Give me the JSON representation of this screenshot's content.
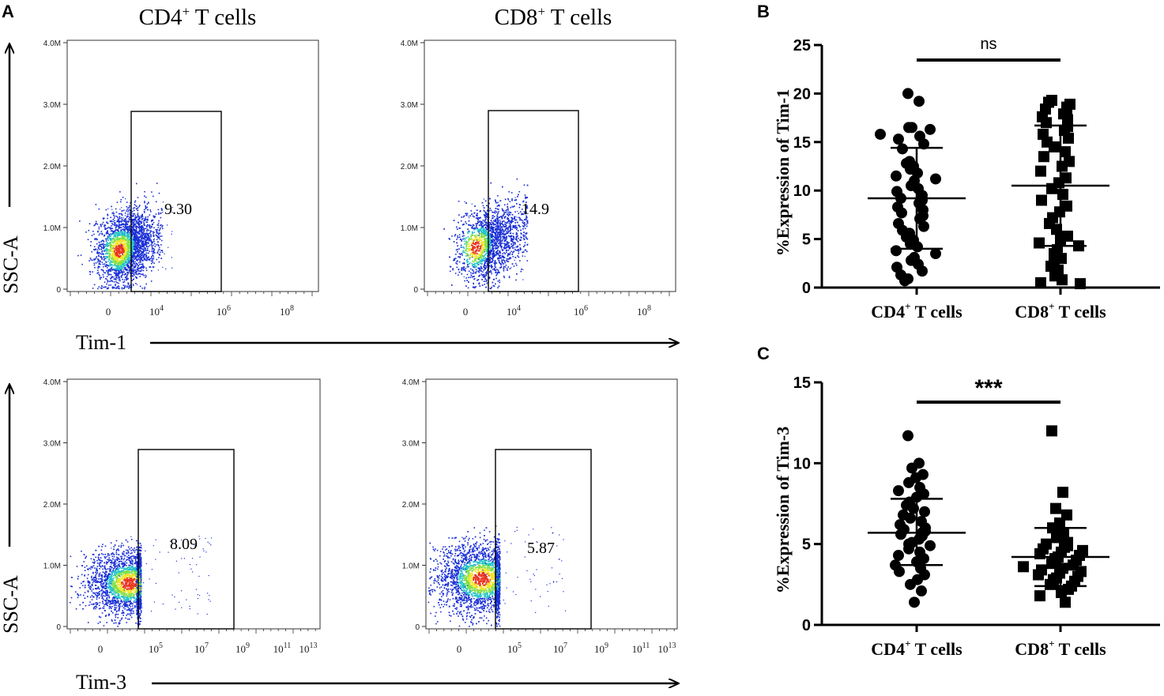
{
  "panel_labels": {
    "a": "A",
    "b": "B",
    "c": "C"
  },
  "column_titles": {
    "cd4": {
      "main": "CD4",
      "sup": "+",
      "rest": " T cells"
    },
    "cd8": {
      "main": "CD8",
      "sup": "+",
      "rest": " T cells"
    }
  },
  "y_axis_label": "SSC-A",
  "row_axis_labels": {
    "tim1": "Tim-1",
    "tim3": "Tim-3"
  },
  "flow_y_ticks": [
    "4.0M",
    "3.0M",
    "2.0M",
    "1.0M",
    "0"
  ],
  "flow_x_ticks_tim1": [
    {
      "base": "0",
      "exp": ""
    },
    {
      "base": "10",
      "exp": "4"
    },
    {
      "base": "10",
      "exp": "6"
    },
    {
      "base": "10",
      "exp": "8"
    }
  ],
  "flow_x_ticks_tim3": [
    {
      "base": "0",
      "exp": ""
    },
    {
      "base": "10",
      "exp": "5"
    },
    {
      "base": "10",
      "exp": "7"
    },
    {
      "base": "10",
      "exp": "9"
    },
    {
      "base": "10",
      "exp": "11"
    },
    {
      "base": "10",
      "exp": "13"
    }
  ],
  "gate_values": {
    "cd4_tim1": "9.30",
    "cd8_tim1": "14.9",
    "cd4_tim3": "8.09",
    "cd8_tim3": "5.87"
  },
  "colors": {
    "density_low": "#1a2fd6",
    "density_mid": "#22c3c9",
    "density_midhigh": "#7fe04a",
    "density_high": "#f2e32b",
    "density_peak": "#e8331f",
    "ink": "#000000"
  },
  "chart_data": [
    {
      "type": "scatter",
      "panel": "B",
      "ylabel": "%Expression of Tim-1",
      "ylim": [
        0,
        25
      ],
      "yticks": [
        "0",
        "5",
        "10",
        "15",
        "20",
        "25"
      ],
      "categories": [
        {
          "main": "CD4",
          "sup": "+",
          "rest": " T cells"
        },
        {
          "main": "CD8",
          "sup": "+",
          "rest": " T cells"
        }
      ],
      "significance": "ns",
      "series": [
        {
          "name": "CD4+ T cells",
          "marker": "circle",
          "mean": 9.2,
          "sd_low": 4.0,
          "sd_high": 14.4,
          "values": [
            20.0,
            19.2,
            16.5,
            16.5,
            16.3,
            15.8,
            15.6,
            15.3,
            14.8,
            14.3,
            13.0,
            12.8,
            12.5,
            12.2,
            11.8,
            11.5,
            11.2,
            11.0,
            10.5,
            10.2,
            9.9,
            9.5,
            9.2,
            9.0,
            8.7,
            8.3,
            8.0,
            7.7,
            7.4,
            7.1,
            6.6,
            6.3,
            5.9,
            5.6,
            5.2,
            4.9,
            4.5,
            4.2,
            3.8,
            3.5,
            3.1,
            2.8,
            2.4,
            2.1,
            1.7,
            1.3,
            0.9,
            0.7
          ]
        },
        {
          "name": "CD8+ T cells",
          "marker": "square",
          "mean": 10.5,
          "sd_low": 4.3,
          "sd_high": 16.7,
          "values": [
            19.3,
            19.1,
            18.9,
            18.6,
            18.4,
            18.2,
            17.9,
            17.6,
            17.3,
            17.0,
            16.6,
            16.2,
            15.8,
            15.4,
            15.0,
            14.5,
            14.0,
            13.5,
            13.0,
            12.5,
            12.0,
            11.3,
            10.8,
            10.2,
            9.6,
            9.0,
            8.4,
            7.8,
            7.2,
            6.6,
            6.0,
            5.3,
            4.9,
            4.6,
            4.3,
            3.9,
            3.5,
            3.0,
            2.6,
            2.2,
            1.8,
            1.2,
            0.8,
            0.5,
            0.4
          ]
        }
      ]
    },
    {
      "type": "scatter",
      "panel": "C",
      "ylabel": "%Expression of Tim-3",
      "ylim": [
        0,
        15
      ],
      "yticks": [
        "0",
        "5",
        "10",
        "15"
      ],
      "categories": [
        {
          "main": "CD4",
          "sup": "+",
          "rest": " T cells"
        },
        {
          "main": "CD8",
          "sup": "+",
          "rest": " T cells"
        }
      ],
      "significance": "***",
      "series": [
        {
          "name": "CD4+ T cells",
          "marker": "circle",
          "mean": 5.7,
          "sd_low": 3.7,
          "sd_high": 7.8,
          "values": [
            11.7,
            10.0,
            9.7,
            9.3,
            9.1,
            8.8,
            8.5,
            8.3,
            8.1,
            7.9,
            7.6,
            7.4,
            7.2,
            7.0,
            6.8,
            6.6,
            6.4,
            6.2,
            6.0,
            5.9,
            5.8,
            5.7,
            5.6,
            5.5,
            5.3,
            5.1,
            5.0,
            4.9,
            4.7,
            4.5,
            4.3,
            4.1,
            3.9,
            3.7,
            3.5,
            3.3,
            3.1,
            2.8,
            2.5,
            2.1,
            1.4
          ]
        },
        {
          "name": "CD8+ T cells",
          "marker": "square",
          "mean": 4.2,
          "sd_low": 2.4,
          "sd_high": 6.0,
          "values": [
            12.0,
            8.2,
            7.2,
            6.8,
            6.3,
            6.0,
            5.7,
            5.4,
            5.1,
            5.0,
            4.9,
            4.8,
            4.7,
            4.6,
            4.5,
            4.4,
            4.3,
            4.2,
            4.1,
            4.0,
            3.9,
            3.8,
            3.7,
            3.6,
            3.5,
            3.4,
            3.3,
            3.2,
            3.1,
            3.0,
            2.9,
            2.8,
            2.7,
            2.6,
            2.5,
            2.4,
            2.2,
            2.0,
            1.8,
            1.4
          ]
        }
      ]
    }
  ]
}
